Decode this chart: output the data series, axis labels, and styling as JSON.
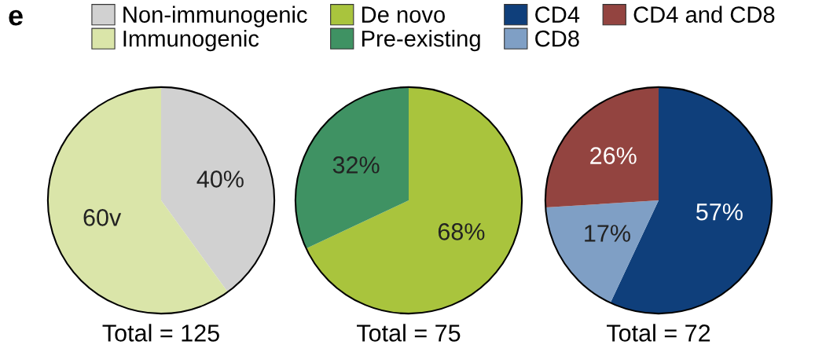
{
  "chart_data": [
    {
      "type": "pie",
      "xlabel": "Total = 125",
      "annotations": [
        "e"
      ],
      "categories": [
        "Non-immunogenic",
        "Immunogenic"
      ],
      "values": [
        40,
        60
      ],
      "colors": [
        "#d1d1d1",
        "#dae5a9"
      ],
      "value_labels": [
        "40%",
        "60v"
      ],
      "legend": "top"
    },
    {
      "type": "pie",
      "xlabel": "Total = 75",
      "categories": [
        "De novo",
        "Pre-existing"
      ],
      "values": [
        68,
        32
      ],
      "colors": [
        "#a9c43d",
        "#3f9263"
      ],
      "value_labels": [
        "68%",
        "32%"
      ],
      "legend": "top"
    },
    {
      "type": "pie",
      "xlabel": "Total = 72",
      "categories": [
        "CD4",
        "CD8",
        "CD4 and CD8"
      ],
      "values": [
        57,
        17,
        26
      ],
      "colors": [
        "#0f3f7b",
        "#7f9fc5",
        "#934440"
      ],
      "value_labels": [
        "57%",
        "17%",
        "26%"
      ],
      "legend": "top"
    }
  ]
}
